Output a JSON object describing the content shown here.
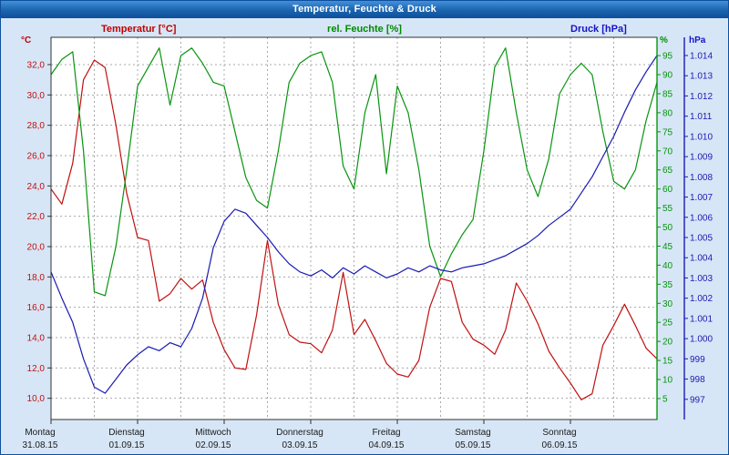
{
  "window": {
    "title": "Temperatur, Feuchte & Druck"
  },
  "legend": {
    "temperature": "Temperatur [°C]",
    "humidity": "rel. Feuchte [%]",
    "pressure": "Druck [hPa]"
  },
  "units": {
    "temperature": "°C",
    "humidity": "%",
    "pressure": "hPa"
  },
  "colors": {
    "temperature": "#c01010",
    "humidity": "#089410",
    "pressure": "#1a1ab4",
    "grid": "#a8a8a8",
    "axis": "#333333",
    "plot_background": "#ffffff",
    "page_background": "#d7e6f6",
    "titlebar_text": "#ffffff"
  },
  "chart_data": {
    "type": "line",
    "title": "Temperatur, Feuchte & Druck",
    "x_axis": {
      "unit": "hours",
      "start": 0,
      "end": 168,
      "sample_interval_hours": 3,
      "gridline_every_hours": 12,
      "day_labels": [
        {
          "day": "Montag",
          "date": "31.08.15"
        },
        {
          "day": "Dienstag",
          "date": "01.09.15"
        },
        {
          "day": "Mittwoch",
          "date": "02.09.15"
        },
        {
          "day": "Donnerstag",
          "date": "03.09.15"
        },
        {
          "day": "Freitag",
          "date": "04.09.15"
        },
        {
          "day": "Samstag",
          "date": "05.09.15"
        },
        {
          "day": "Sonntag",
          "date": "06.09.15"
        }
      ]
    },
    "axes": {
      "temperature": {
        "side": "left",
        "min": 8.6,
        "max": 33.8,
        "ticks": [
          32,
          30,
          28,
          26,
          24,
          22,
          20,
          18,
          16,
          14,
          12,
          10
        ],
        "tick_labels": [
          "32,0",
          "30,0",
          "28,0",
          "26,0",
          "24,0",
          "22,0",
          "20,0",
          "18,0",
          "16,0",
          "14,0",
          "12,0",
          "10,0"
        ]
      },
      "humidity": {
        "side": "right-inner",
        "min": -0.5,
        "max": 99.8,
        "ticks": [
          95,
          90,
          85,
          80,
          75,
          70,
          65,
          60,
          55,
          50,
          45,
          40,
          35,
          30,
          25,
          20,
          15,
          10,
          5
        ],
        "tick_labels": [
          "95",
          "90",
          "85",
          "80",
          "75",
          "70",
          "65",
          "60",
          "55",
          "50",
          "45",
          "40",
          "35",
          "30",
          "25",
          "20",
          "15",
          "10",
          "5"
        ]
      },
      "pressure": {
        "side": "right-outer",
        "min": 996.0,
        "max": 1014.9,
        "ticks": [
          1014,
          1013,
          1012,
          1011,
          1010,
          1009,
          1008,
          1007,
          1006,
          1005,
          1004,
          1003,
          1002,
          1001,
          1000,
          999,
          998,
          997
        ],
        "tick_labels": [
          "1.014",
          "1.013",
          "1.012",
          "1.011",
          "1.010",
          "1.009",
          "1.008",
          "1.007",
          "1.006",
          "1.005",
          "1.004",
          "1.003",
          "1.002",
          "1.001",
          "1.000",
          "999",
          "998",
          "997"
        ]
      }
    },
    "grid": {
      "style": "dashed",
      "horizontal_follows": "temperature"
    },
    "series": [
      {
        "name": "Temperatur",
        "axis": "temperature",
        "color": "temperature",
        "values": [
          23.8,
          22.8,
          25.5,
          31.0,
          32.3,
          31.8,
          28.0,
          23.5,
          20.6,
          20.4,
          16.4,
          16.9,
          17.9,
          17.2,
          17.8,
          15.0,
          13.2,
          12.0,
          11.9,
          15.5,
          20.4,
          16.2,
          14.2,
          13.7,
          13.6,
          13.0,
          14.5,
          18.3,
          14.2,
          15.2,
          13.8,
          12.3,
          11.6,
          11.4,
          12.5,
          16.0,
          17.9,
          17.7,
          15.0,
          13.9,
          13.5,
          12.9,
          14.5,
          17.6,
          16.4,
          14.9,
          13.1,
          12.0,
          11.0,
          9.9,
          10.3,
          13.5,
          14.8,
          16.2,
          14.8,
          13.3,
          12.6
        ]
      },
      {
        "name": "rel. Feuchte",
        "axis": "humidity",
        "color": "humidity",
        "values": [
          90,
          94,
          96,
          70,
          33,
          32,
          45,
          65,
          87,
          92,
          97,
          82,
          95,
          97,
          93,
          88,
          87,
          75,
          63,
          57,
          55,
          70,
          88,
          93,
          95,
          96,
          88,
          66,
          60,
          80,
          90,
          64,
          87,
          80,
          65,
          45,
          37,
          43,
          48,
          52,
          70,
          92,
          97,
          80,
          65,
          58,
          68,
          85,
          90,
          93,
          90,
          75,
          62,
          60,
          65,
          78,
          88
        ]
      },
      {
        "name": "Druck",
        "axis": "pressure",
        "color": "pressure",
        "values": [
          1003.3,
          1002.0,
          1000.8,
          999.0,
          997.6,
          997.3,
          998.0,
          998.7,
          999.2,
          999.6,
          999.4,
          999.8,
          999.6,
          1000.5,
          1002.0,
          1004.5,
          1005.8,
          1006.4,
          1006.2,
          1005.6,
          1005.0,
          1004.3,
          1003.7,
          1003.3,
          1003.1,
          1003.4,
          1003.0,
          1003.5,
          1003.2,
          1003.6,
          1003.3,
          1003.0,
          1003.2,
          1003.5,
          1003.3,
          1003.6,
          1003.4,
          1003.3,
          1003.5,
          1003.6,
          1003.7,
          1003.9,
          1004.1,
          1004.4,
          1004.7,
          1005.1,
          1005.6,
          1006.0,
          1006.4,
          1007.2,
          1008.0,
          1009.0,
          1010.0,
          1011.2,
          1012.3,
          1013.2,
          1014.0
        ]
      }
    ]
  }
}
